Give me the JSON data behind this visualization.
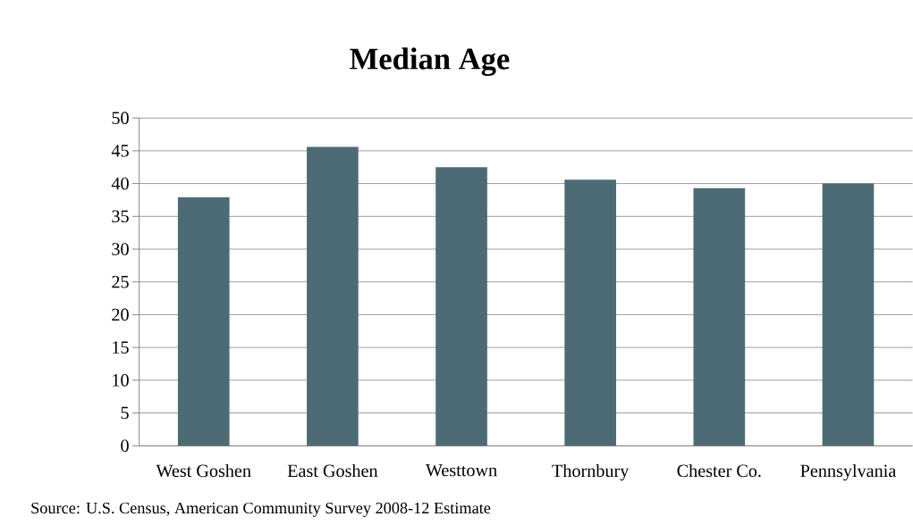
{
  "chart_data": {
    "type": "bar",
    "title": "Median Age",
    "categories": [
      "West Goshen",
      "East Goshen",
      "Westtown",
      "Thornbury",
      "Chester Co.",
      "Pennsylvania"
    ],
    "values": [
      37.9,
      45.6,
      42.5,
      40.6,
      39.3,
      40.0
    ],
    "color": "#4d6b74",
    "ylim": [
      0,
      50
    ],
    "yticks": [
      0,
      5,
      10,
      15,
      20,
      25,
      30,
      35,
      40,
      45,
      50
    ],
    "grid": "y",
    "annotations": [
      "Source: U.S. Census, American Community Survey 2008-12 Estimate"
    ]
  }
}
